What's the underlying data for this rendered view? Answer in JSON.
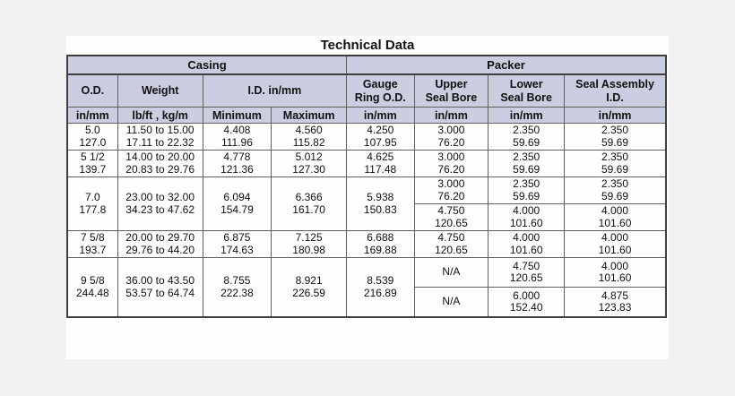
{
  "title": "Technical Data",
  "colors": {
    "header_bg": "#cbcee0",
    "border": "#5f5f5f",
    "panel_bg": "#fffefc",
    "page_bg": "#f3f2f3"
  },
  "header": {
    "casing": "Casing",
    "packer": "Packer",
    "col_od": "O.D.",
    "col_weight": "Weight",
    "col_id": "I.D. in/mm",
    "col_gauge_1": "Gauge",
    "col_gauge_2": "Ring O.D.",
    "col_upper_1": "Upper",
    "col_upper_2": "Seal Bore",
    "col_lower_1": "Lower",
    "col_lower_2": "Seal Bore",
    "col_seal_1": "Seal Assembly",
    "col_seal_2": "I.D.",
    "unit_od": "in/mm",
    "unit_weight": "lb/ft , kg/m",
    "unit_min": "Minimum",
    "unit_max": "Maximum",
    "unit_gauge": "in/mm",
    "unit_upper": "in/mm",
    "unit_lower": "in/mm",
    "unit_seal": "in/mm"
  },
  "rows": [
    {
      "od": {
        "in": "5.0",
        "mm": "127.0"
      },
      "weight": {
        "in": "11.50 to 15.00",
        "mm": "17.11 to 22.32"
      },
      "min": {
        "in": "4.408",
        "mm": "111.96"
      },
      "max": {
        "in": "4.560",
        "mm": "115.82"
      },
      "gauge": {
        "in": "4.250",
        "mm": "107.95"
      },
      "upper": {
        "in": "3.000",
        "mm": "76.20"
      },
      "lower": {
        "in": "2.350",
        "mm": "59.69"
      },
      "seal": {
        "in": "2.350",
        "mm": "59.69"
      }
    },
    {
      "od": {
        "in": "5 1/2",
        "mm": "139.7"
      },
      "weight": {
        "in": "14.00 to 20.00",
        "mm": "20.83 to 29.76"
      },
      "min": {
        "in": "4.778",
        "mm": "121.36"
      },
      "max": {
        "in": "5.012",
        "mm": "127.30"
      },
      "gauge": {
        "in": "4.625",
        "mm": "117.48"
      },
      "upper": {
        "in": "3.000",
        "mm": "76.20"
      },
      "lower": {
        "in": "2.350",
        "mm": "59.69"
      },
      "seal": {
        "in": "2.350",
        "mm": "59.69"
      }
    },
    {
      "od": {
        "in": "7.0",
        "mm": "177.8"
      },
      "weight": {
        "in": "23.00 to 32.00",
        "mm": "34.23 to 47.62"
      },
      "min": {
        "in": "6.094",
        "mm": "154.79"
      },
      "max": {
        "in": "6.366",
        "mm": "161.70"
      },
      "gauge": {
        "in": "5.938",
        "mm": "150.83"
      },
      "sub": [
        {
          "upper": {
            "in": "3.000",
            "mm": "76.20"
          },
          "lower": {
            "in": "2.350",
            "mm": "59.69"
          },
          "seal": {
            "in": "2.350",
            "mm": "59.69"
          }
        },
        {
          "upper": {
            "in": "4.750",
            "mm": "120.65"
          },
          "lower": {
            "in": "4.000",
            "mm": "101.60"
          },
          "seal": {
            "in": "4.000",
            "mm": "101.60"
          }
        }
      ]
    },
    {
      "od": {
        "in": "7 5/8",
        "mm": "193.7"
      },
      "weight": {
        "in": "20.00 to 29.70",
        "mm": "29.76 to 44.20"
      },
      "min": {
        "in": "6.875",
        "mm": "174.63"
      },
      "max": {
        "in": "7.125",
        "mm": "180.98"
      },
      "gauge": {
        "in": "6.688",
        "mm": "169.88"
      },
      "upper": {
        "in": "4.750",
        "mm": "120.65"
      },
      "lower": {
        "in": "4.000",
        "mm": "101.60"
      },
      "seal": {
        "in": "4.000",
        "mm": "101.60"
      }
    },
    {
      "od": {
        "in": "9 5/8",
        "mm": "244.48"
      },
      "weight": {
        "in": "36.00 to 43.50",
        "mm": "53.57 to 64.74"
      },
      "min": {
        "in": "8.755",
        "mm": "222.38"
      },
      "max": {
        "in": "8.921",
        "mm": "226.59"
      },
      "gauge": {
        "in": "8.539",
        "mm": "216.89"
      },
      "sub": [
        {
          "upper": {
            "na": "N/A"
          },
          "lower": {
            "in": "4.750",
            "mm": "120.65"
          },
          "seal": {
            "in": "4.000",
            "mm": "101.60"
          }
        },
        {
          "upper": {
            "na": "N/A"
          },
          "lower": {
            "in": "6.000",
            "mm": "152.40"
          },
          "seal": {
            "in": "4.875",
            "mm": "123.83"
          }
        }
      ]
    }
  ]
}
